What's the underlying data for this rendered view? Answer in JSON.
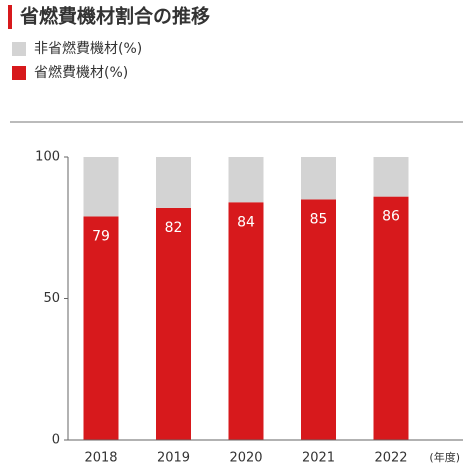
{
  "chart_data": {
    "type": "stacked_bar",
    "title": "省燃費機材割合の推移",
    "categories": [
      "2018",
      "2019",
      "2020",
      "2021",
      "2022"
    ],
    "x_label": "(年度)",
    "series": [
      {
        "name": "非省燃費機材(%)",
        "color": "#d3d3d3",
        "values": [
          21,
          18,
          16,
          15,
          14
        ]
      },
      {
        "name": "省燃費機材(%)",
        "color": "#d7191c",
        "values": [
          79,
          82,
          84,
          85,
          86
        ]
      }
    ],
    "ylim": [
      0,
      100
    ],
    "yticks": [
      0,
      50,
      100
    ],
    "legend": "top-left"
  }
}
